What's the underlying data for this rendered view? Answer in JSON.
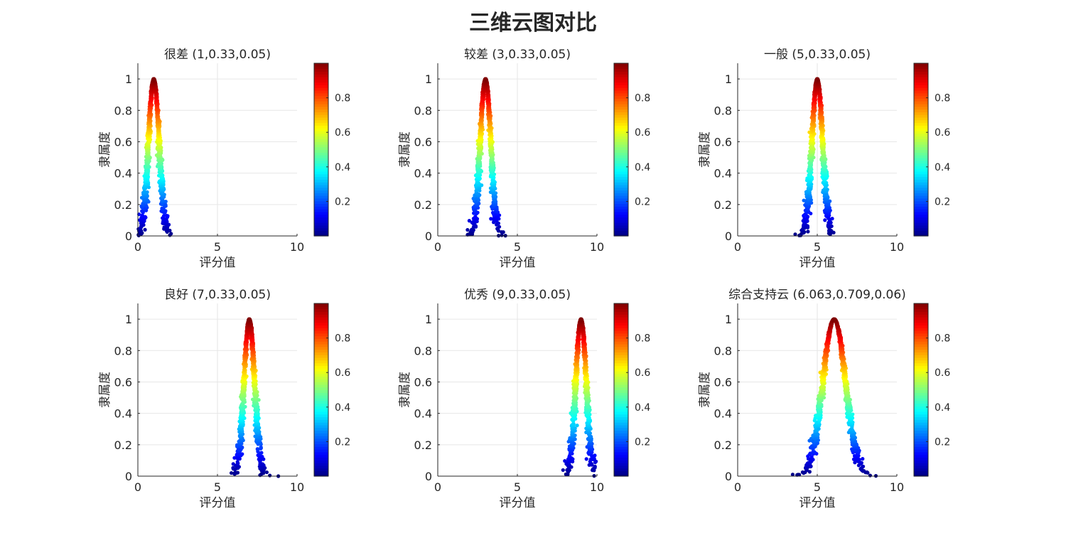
{
  "figure_title": "三维云图对比",
  "chart_data": [
    {
      "type": "scatter",
      "title": "很差 (1,0.33,0.05)",
      "xlabel": "评分值",
      "ylabel": "隶属度",
      "xlim": [
        0,
        10
      ],
      "ylim": [
        0,
        1.1
      ],
      "xticks": [
        0,
        5,
        10
      ],
      "yticks": [
        0,
        0.2,
        0.4,
        0.6,
        0.8,
        1
      ],
      "grid": true,
      "cloud": {
        "Ex": 1,
        "En": 0.33,
        "He": 0.05
      },
      "colorbar": {
        "colormap": "jet",
        "range": [
          0,
          1
        ],
        "ticks": [
          0.2,
          0.4,
          0.6,
          0.8
        ]
      }
    },
    {
      "type": "scatter",
      "title": "较差 (3,0.33,0.05)",
      "xlabel": "评分值",
      "ylabel": "隶属度",
      "xlim": [
        0,
        10
      ],
      "ylim": [
        0,
        1.1
      ],
      "xticks": [
        0,
        5,
        10
      ],
      "yticks": [
        0,
        0.2,
        0.4,
        0.6,
        0.8,
        1
      ],
      "grid": true,
      "cloud": {
        "Ex": 3,
        "En": 0.33,
        "He": 0.05
      },
      "colorbar": {
        "colormap": "jet",
        "range": [
          0,
          1
        ],
        "ticks": [
          0.2,
          0.4,
          0.6,
          0.8
        ]
      }
    },
    {
      "type": "scatter",
      "title": "一般 (5,0.33,0.05)",
      "xlabel": "评分值",
      "ylabel": "隶属度",
      "xlim": [
        0,
        10
      ],
      "ylim": [
        0,
        1.1
      ],
      "xticks": [
        0,
        5,
        10
      ],
      "yticks": [
        0,
        0.2,
        0.4,
        0.6,
        0.8,
        1
      ],
      "grid": true,
      "cloud": {
        "Ex": 5,
        "En": 0.33,
        "He": 0.05
      },
      "colorbar": {
        "colormap": "jet",
        "range": [
          0,
          1
        ],
        "ticks": [
          0.2,
          0.4,
          0.6,
          0.8
        ]
      }
    },
    {
      "type": "scatter",
      "title": "良好 (7,0.33,0.05)",
      "xlabel": "评分值",
      "ylabel": "隶属度",
      "xlim": [
        0,
        10
      ],
      "ylim": [
        0,
        1.1
      ],
      "xticks": [
        0,
        5,
        10
      ],
      "yticks": [
        0,
        0.2,
        0.4,
        0.6,
        0.8,
        1
      ],
      "grid": true,
      "cloud": {
        "Ex": 7,
        "En": 0.33,
        "He": 0.05
      },
      "colorbar": {
        "colormap": "jet",
        "range": [
          0,
          1
        ],
        "ticks": [
          0.2,
          0.4,
          0.6,
          0.8
        ]
      }
    },
    {
      "type": "scatter",
      "title": "优秀 (9,0.33,0.05)",
      "xlabel": "评分值",
      "ylabel": "隶属度",
      "xlim": [
        0,
        10
      ],
      "ylim": [
        0,
        1.1
      ],
      "xticks": [
        0,
        5,
        10
      ],
      "yticks": [
        0,
        0.2,
        0.4,
        0.6,
        0.8,
        1
      ],
      "grid": true,
      "cloud": {
        "Ex": 9,
        "En": 0.33,
        "He": 0.05
      },
      "colorbar": {
        "colormap": "jet",
        "range": [
          0,
          1
        ],
        "ticks": [
          0.2,
          0.4,
          0.6,
          0.8
        ]
      }
    },
    {
      "type": "scatter",
      "title": "综合支持云 (6.063,0.709,0.06)",
      "xlabel": "评分值",
      "ylabel": "隶属度",
      "xlim": [
        0,
        10
      ],
      "ylim": [
        0,
        1.1
      ],
      "xticks": [
        0,
        5,
        10
      ],
      "yticks": [
        0,
        0.2,
        0.4,
        0.6,
        0.8,
        1
      ],
      "grid": true,
      "cloud": {
        "Ex": 6.063,
        "En": 0.709,
        "He": 0.06
      },
      "colorbar": {
        "colormap": "jet",
        "range": [
          0,
          1
        ],
        "ticks": [
          0.2,
          0.4,
          0.6,
          0.8
        ]
      }
    }
  ]
}
